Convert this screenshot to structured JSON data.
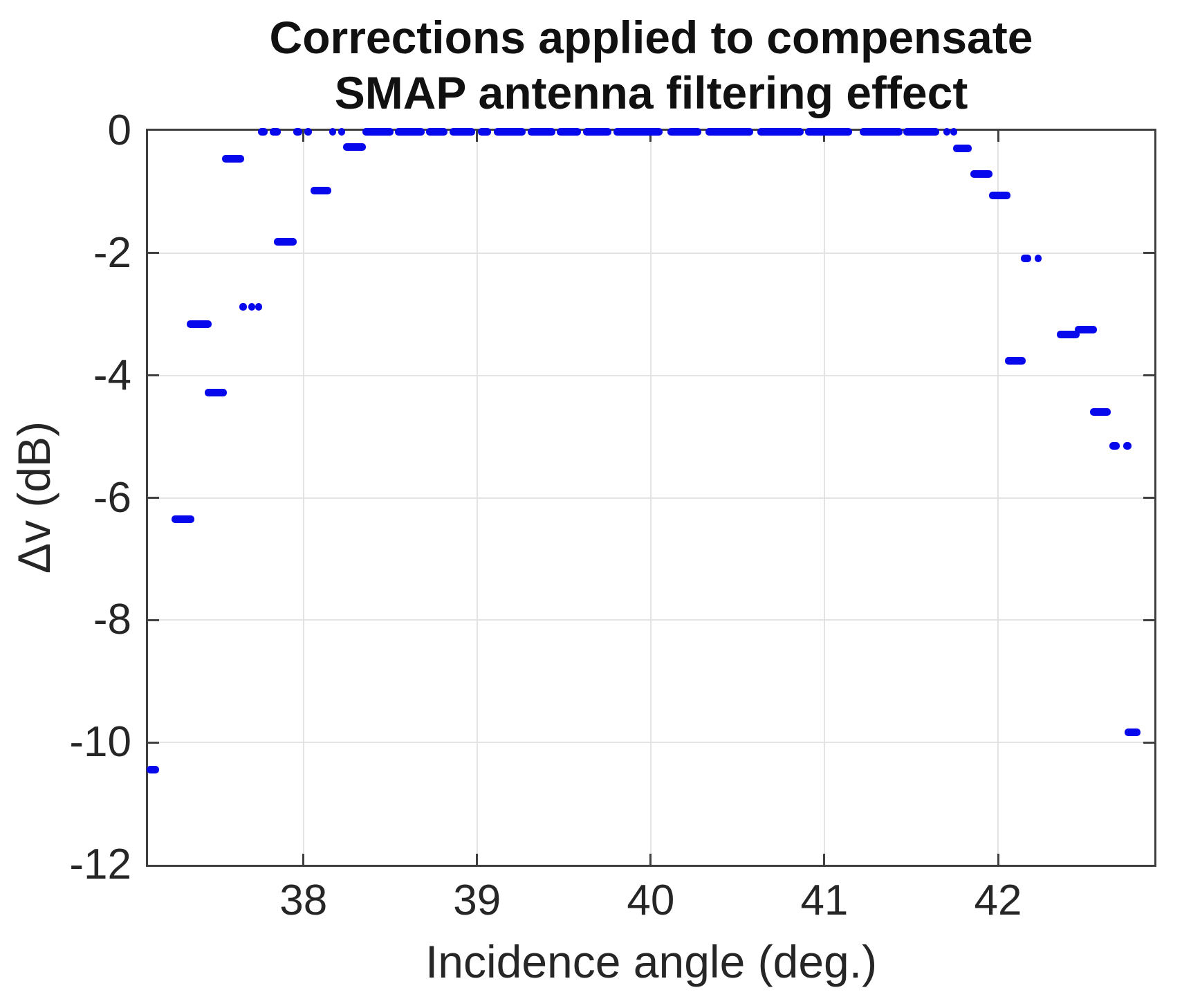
{
  "figure": {
    "title_line1": "Corrections applied to compensate",
    "title_line2": "SMAP antenna filtering effect",
    "xlabel": "Incidence angle (deg.)",
    "ylabel": "Δv (dB)"
  },
  "colors": {
    "marker": "#0808ec",
    "grid": "#e3e3e3",
    "axis": "#3f3f3f",
    "text": "#262626"
  },
  "chart_data": {
    "type": "scatter",
    "marker": "horizontal-dash",
    "marker_color": "#0808ec",
    "title": "Corrections applied to compensate SMAP antenna filtering effect",
    "xlabel": "Incidence angle (deg.)",
    "ylabel": "Δv (dB)",
    "xlim": [
      37.105,
      42.9
    ],
    "ylim": [
      -12,
      0
    ],
    "xticks": [
      38,
      39,
      40,
      41,
      42
    ],
    "xtick_labels": [
      "38",
      "39",
      "40",
      "41",
      "42"
    ],
    "yticks": [
      0,
      -2,
      -4,
      -6,
      -8,
      -10,
      -12
    ],
    "ytick_labels": [
      "0",
      "-2",
      "-4",
      "-6",
      "-8",
      "-10",
      "-12"
    ],
    "grid": true,
    "legend": null,
    "dash_segments_note": "each dash is [x_start_deg, x_end_deg, delta_v_dB]",
    "dashes": [
      [
        37.095,
        37.17,
        -10.45
      ],
      [
        37.24,
        37.37,
        -6.35
      ],
      [
        37.33,
        37.47,
        -3.16
      ],
      [
        37.43,
        37.56,
        -4.28
      ],
      [
        37.53,
        37.66,
        -0.46
      ],
      [
        37.63,
        37.675,
        -2.88
      ],
      [
        37.682,
        37.715,
        -2.88
      ],
      [
        37.722,
        37.76,
        -2.88
      ],
      [
        37.83,
        37.96,
        -1.81
      ],
      [
        38.04,
        38.16,
        -0.98
      ],
      [
        38.23,
        38.36,
        -0.27
      ],
      [
        37.74,
        37.795,
        -0.02
      ],
      [
        37.805,
        37.87,
        -0.02
      ],
      [
        37.94,
        37.995,
        -0.02
      ],
      [
        38.005,
        38.05,
        -0.02
      ],
      [
        38.15,
        38.185,
        -0.02
      ],
      [
        38.2,
        38.24,
        -0.02
      ],
      [
        38.34,
        38.52,
        -0.02
      ],
      [
        38.525,
        38.7,
        -0.02
      ],
      [
        38.705,
        38.83,
        -0.02
      ],
      [
        38.84,
        38.99,
        -0.02
      ],
      [
        39.005,
        39.08,
        -0.02
      ],
      [
        39.095,
        39.28,
        -0.02
      ],
      [
        39.29,
        39.45,
        -0.02
      ],
      [
        39.46,
        39.6,
        -0.02
      ],
      [
        39.61,
        39.775,
        -0.02
      ],
      [
        39.785,
        40.07,
        -0.02
      ],
      [
        40.095,
        40.29,
        -0.02
      ],
      [
        40.315,
        40.59,
        -0.02
      ],
      [
        40.615,
        40.88,
        -0.02
      ],
      [
        40.89,
        41.16,
        -0.02
      ],
      [
        41.205,
        41.45,
        -0.02
      ],
      [
        41.455,
        41.66,
        -0.02
      ],
      [
        41.685,
        41.715,
        -0.02
      ],
      [
        41.725,
        41.755,
        -0.02
      ],
      [
        41.74,
        41.85,
        -0.29
      ],
      [
        41.84,
        41.97,
        -0.71
      ],
      [
        41.95,
        42.07,
        -1.06
      ],
      [
        42.13,
        42.19,
        -2.09
      ],
      [
        42.21,
        42.25,
        -2.09
      ],
      [
        42.04,
        42.16,
        -3.76
      ],
      [
        42.34,
        42.47,
        -3.33
      ],
      [
        42.44,
        42.57,
        -3.25
      ],
      [
        42.53,
        42.65,
        -4.6
      ],
      [
        42.64,
        42.7,
        -5.15
      ],
      [
        42.72,
        42.77,
        -5.15
      ],
      [
        42.73,
        42.82,
        -9.83
      ]
    ]
  }
}
